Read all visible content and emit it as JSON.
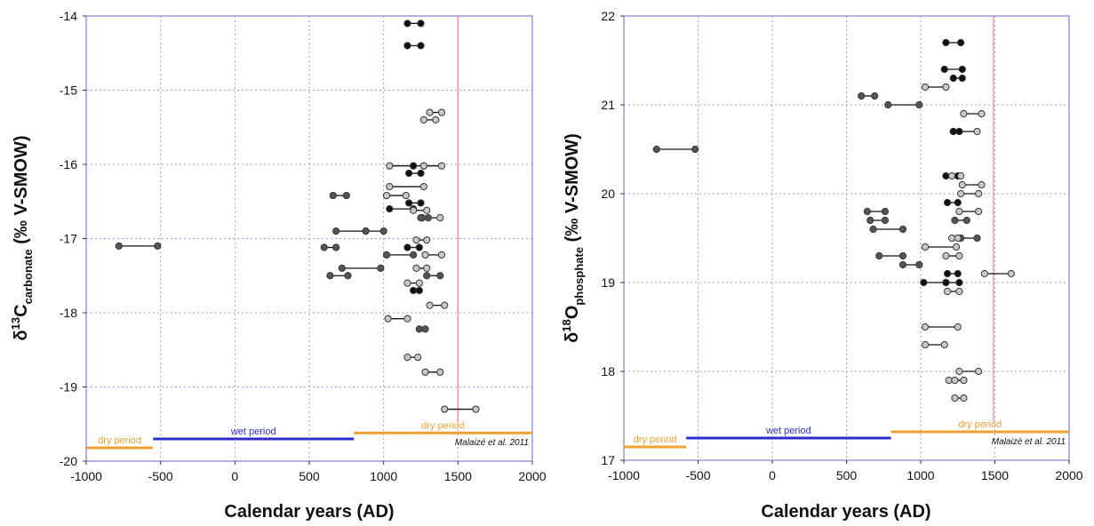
{
  "chart_data": [
    {
      "type": "scatter",
      "ylabel": {
        "prefix": "δ",
        "sup": "13",
        "element": "C",
        "sub": "carbonate",
        "suffix": " (‰ V-SMOW)"
      },
      "xlabel": "Calendar years (AD)",
      "xlim": [
        -1000,
        2000
      ],
      "ylim": [
        -20,
        -14
      ],
      "xticks": [
        -1000,
        -500,
        0,
        500,
        1000,
        1500,
        2000
      ],
      "xtick_labels": [
        "-1000",
        "-500",
        "0",
        "500",
        "1000",
        "1500",
        "2000"
      ],
      "yticks": [
        -20,
        -19,
        -18,
        -17,
        -16,
        -15,
        -14
      ],
      "ytick_labels": [
        "-20",
        "-19",
        "-18",
        "-17",
        "-16",
        "-15",
        "-14"
      ],
      "grid": true,
      "vertical_line_x": 1500,
      "vertical_line_color": "#ff8080",
      "periods": [
        {
          "label": "dry period",
          "x0": -1000,
          "x1": -550,
          "y": -19.82,
          "color": "#f0a030"
        },
        {
          "label": "wet period",
          "x0": -550,
          "x1": 800,
          "y": -19.7,
          "color": "#2d2dcc"
        },
        {
          "label": "dry period",
          "x0": 800,
          "x1": 2000,
          "y": -19.62,
          "color": "#f0a030"
        }
      ],
      "citation": "Malaizé et al. 2011",
      "marker_colors": {
        "black": "#111111",
        "dark": "#555555",
        "light": "#c8c8c8"
      },
      "intervals": [
        {
          "x0": -780,
          "x1": -520,
          "y": -17.1,
          "color": "dark"
        },
        {
          "x0": 1160,
          "x1": 1250,
          "y": -14.1,
          "color": "black"
        },
        {
          "x0": 1160,
          "x1": 1250,
          "y": -14.4,
          "color": "black"
        },
        {
          "x0": 1310,
          "x1": 1390,
          "y": -15.3,
          "color": "light"
        },
        {
          "x0": 1270,
          "x1": 1350,
          "y": -15.4,
          "color": "light"
        },
        {
          "x0": 1040,
          "x1": 1200,
          "y": -16.02,
          "color": "light"
        },
        {
          "x0": 1200,
          "x1": 1270,
          "y": -16.02,
          "color": "black"
        },
        {
          "x0": 1270,
          "x1": 1390,
          "y": -16.02,
          "color": "light"
        },
        {
          "x0": 1170,
          "x1": 1250,
          "y": -16.12,
          "color": "black"
        },
        {
          "x0": 1040,
          "x1": 1270,
          "y": -16.3,
          "color": "light"
        },
        {
          "x0": 660,
          "x1": 750,
          "y": -16.42,
          "color": "dark"
        },
        {
          "x0": 1020,
          "x1": 1150,
          "y": -16.42,
          "color": "light"
        },
        {
          "x0": 1170,
          "x1": 1250,
          "y": -16.52,
          "color": "black"
        },
        {
          "x0": 1040,
          "x1": 1200,
          "y": -16.6,
          "color": "black"
        },
        {
          "x0": 1200,
          "x1": 1290,
          "y": -16.62,
          "color": "light"
        },
        {
          "x0": 1260,
          "x1": 1380,
          "y": -16.72,
          "color": "light"
        },
        {
          "x0": 1250,
          "x1": 1300,
          "y": -16.72,
          "color": "dark"
        },
        {
          "x0": 680,
          "x1": 880,
          "y": -16.9,
          "color": "dark"
        },
        {
          "x0": 880,
          "x1": 1000,
          "y": -16.9,
          "color": "dark"
        },
        {
          "x0": 1220,
          "x1": 1290,
          "y": -17.02,
          "color": "light"
        },
        {
          "x0": 600,
          "x1": 680,
          "y": -17.12,
          "color": "dark"
        },
        {
          "x0": 1160,
          "x1": 1240,
          "y": -17.12,
          "color": "black"
        },
        {
          "x0": 1020,
          "x1": 1200,
          "y": -17.22,
          "color": "dark"
        },
        {
          "x0": 1280,
          "x1": 1390,
          "y": -17.22,
          "color": "light"
        },
        {
          "x0": 720,
          "x1": 980,
          "y": -17.4,
          "color": "dark"
        },
        {
          "x0": 1220,
          "x1": 1290,
          "y": -17.4,
          "color": "light"
        },
        {
          "x0": 640,
          "x1": 760,
          "y": -17.5,
          "color": "dark"
        },
        {
          "x0": 1290,
          "x1": 1380,
          "y": -17.5,
          "color": "dark"
        },
        {
          "x0": 1160,
          "x1": 1240,
          "y": -17.6,
          "color": "light"
        },
        {
          "x0": 1200,
          "x1": 1240,
          "y": -17.7,
          "color": "black"
        },
        {
          "x0": 1310,
          "x1": 1410,
          "y": -17.9,
          "color": "light"
        },
        {
          "x0": 1030,
          "x1": 1160,
          "y": -18.08,
          "color": "light"
        },
        {
          "x0": 1240,
          "x1": 1280,
          "y": -18.22,
          "color": "dark"
        },
        {
          "x0": 1160,
          "x1": 1230,
          "y": -18.6,
          "color": "light"
        },
        {
          "x0": 1280,
          "x1": 1380,
          "y": -18.8,
          "color": "light"
        },
        {
          "x0": 1410,
          "x1": 1620,
          "y": -19.3,
          "color": "light"
        }
      ]
    },
    {
      "type": "scatter",
      "ylabel": {
        "prefix": "δ",
        "sup": "18",
        "element": "O",
        "sub": "phosphate",
        "suffix": " (‰ V-SMOW)"
      },
      "xlabel": "Calendar years (AD)",
      "xlim": [
        -1000,
        2000
      ],
      "ylim": [
        17,
        22
      ],
      "xticks": [
        -1000,
        -500,
        0,
        500,
        1000,
        1500,
        2000
      ],
      "xtick_labels": [
        "-1000",
        "-500",
        "0",
        "500",
        "1000",
        "1500",
        "2000"
      ],
      "yticks": [
        17,
        18,
        19,
        20,
        21,
        22
      ],
      "ytick_labels": [
        "17",
        "18",
        "19",
        "20",
        "21",
        "22"
      ],
      "grid": true,
      "vertical_line_x": 1490,
      "vertical_line_color": "#ff8080",
      "periods": [
        {
          "label": "dry period",
          "x0": -1000,
          "x1": -580,
          "y": 17.15,
          "color": "#f0a030"
        },
        {
          "label": "wet period",
          "x0": -580,
          "x1": 800,
          "y": 17.25,
          "color": "#2d2dcc"
        },
        {
          "label": "dry period",
          "x0": 800,
          "x1": 2000,
          "y": 17.32,
          "color": "#f0a030"
        }
      ],
      "citation": "Malaizé et al. 2011",
      "marker_colors": {
        "black": "#111111",
        "dark": "#555555",
        "light": "#c8c8c8"
      },
      "intervals": [
        {
          "x0": 1170,
          "x1": 1270,
          "y": 21.7,
          "color": "black"
        },
        {
          "x0": 1160,
          "x1": 1280,
          "y": 21.4,
          "color": "black"
        },
        {
          "x0": 1220,
          "x1": 1280,
          "y": 21.3,
          "color": "black"
        },
        {
          "x0": 1030,
          "x1": 1170,
          "y": 21.2,
          "color": "light"
        },
        {
          "x0": 600,
          "x1": 690,
          "y": 21.1,
          "color": "dark"
        },
        {
          "x0": 780,
          "x1": 990,
          "y": 21.0,
          "color": "dark"
        },
        {
          "x0": 1290,
          "x1": 1410,
          "y": 20.9,
          "color": "light"
        },
        {
          "x0": 1220,
          "x1": 1380,
          "y": 20.7,
          "color": "light"
        },
        {
          "x0": 1220,
          "x1": 1260,
          "y": 20.7,
          "color": "black"
        },
        {
          "x0": -780,
          "x1": -520,
          "y": 20.5,
          "color": "dark"
        },
        {
          "x0": 1170,
          "x1": 1250,
          "y": 20.2,
          "color": "black"
        },
        {
          "x0": 1210,
          "x1": 1270,
          "y": 20.2,
          "color": "light"
        },
        {
          "x0": 1280,
          "x1": 1410,
          "y": 20.1,
          "color": "light"
        },
        {
          "x0": 1270,
          "x1": 1390,
          "y": 20.0,
          "color": "light"
        },
        {
          "x0": 1180,
          "x1": 1250,
          "y": 19.9,
          "color": "black"
        },
        {
          "x0": 640,
          "x1": 760,
          "y": 19.8,
          "color": "dark"
        },
        {
          "x0": 1260,
          "x1": 1390,
          "y": 19.8,
          "color": "light"
        },
        {
          "x0": 660,
          "x1": 760,
          "y": 19.7,
          "color": "dark"
        },
        {
          "x0": 1230,
          "x1": 1310,
          "y": 19.7,
          "color": "dark"
        },
        {
          "x0": 680,
          "x1": 880,
          "y": 19.6,
          "color": "dark"
        },
        {
          "x0": 1270,
          "x1": 1380,
          "y": 19.5,
          "color": "dark"
        },
        {
          "x0": 1210,
          "x1": 1250,
          "y": 19.5,
          "color": "light"
        },
        {
          "x0": 1030,
          "x1": 1240,
          "y": 19.4,
          "color": "light"
        },
        {
          "x0": 720,
          "x1": 880,
          "y": 19.3,
          "color": "dark"
        },
        {
          "x0": 1170,
          "x1": 1260,
          "y": 19.3,
          "color": "light"
        },
        {
          "x0": 880,
          "x1": 990,
          "y": 19.2,
          "color": "dark"
        },
        {
          "x0": 1180,
          "x1": 1250,
          "y": 19.1,
          "color": "black"
        },
        {
          "x0": 1430,
          "x1": 1610,
          "y": 19.1,
          "color": "light"
        },
        {
          "x0": 1020,
          "x1": 1170,
          "y": 19.0,
          "color": "black"
        },
        {
          "x0": 1170,
          "x1": 1260,
          "y": 19.0,
          "color": "black"
        },
        {
          "x0": 1180,
          "x1": 1260,
          "y": 18.9,
          "color": "light"
        },
        {
          "x0": 1030,
          "x1": 1250,
          "y": 18.5,
          "color": "light"
        },
        {
          "x0": 1030,
          "x1": 1160,
          "y": 18.3,
          "color": "light"
        },
        {
          "x0": 1260,
          "x1": 1390,
          "y": 18.0,
          "color": "light"
        },
        {
          "x0": 1190,
          "x1": 1290,
          "y": 17.9,
          "color": "light"
        },
        {
          "x0": 1230,
          "x1": 1290,
          "y": 17.9,
          "color": "light"
        },
        {
          "x0": 1230,
          "x1": 1290,
          "y": 17.7,
          "color": "light"
        }
      ]
    }
  ]
}
